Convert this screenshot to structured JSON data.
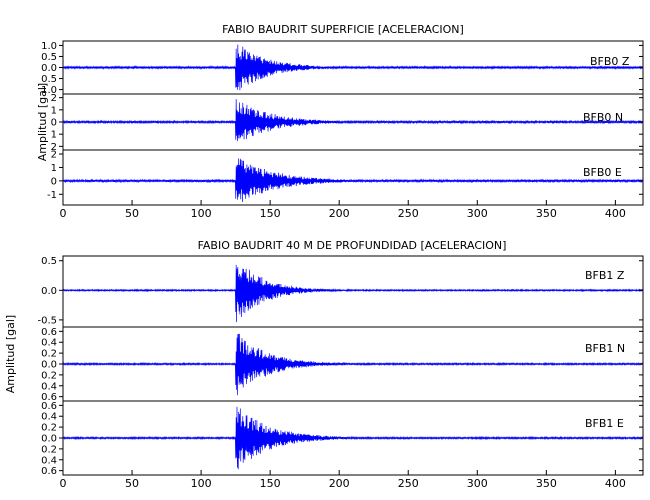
{
  "chart_data": [
    {
      "type": "line",
      "title": "FABIO BAUDRIT SUPERFICIE [ACELERACION]",
      "ylabel": "Amplitud [gal]",
      "xlabel": "",
      "xlim": [
        0,
        420
      ],
      "xticks": [
        "0",
        "50",
        "100",
        "150",
        "200",
        "250",
        "300",
        "350",
        "400"
      ],
      "xtick_values": [
        0,
        50,
        100,
        150,
        200,
        250,
        300,
        350,
        400
      ],
      "grid": false,
      "trace_color": "#0000ff",
      "series": [
        {
          "name": "BFB0 Z",
          "station": "BFB0",
          "component": "Z",
          "ylim": [
            -1.2,
            1.2
          ],
          "ytick_labels": [
            "1.0",
            "0.5",
            "0.0",
            "0.5",
            "1.0"
          ],
          "ytick_values": [
            1.0,
            0.5,
            0.0,
            -0.5,
            -1.0
          ],
          "onset_s": 125,
          "peak_amplitude": 1.15,
          "noise_level": 0.05,
          "decay_s": 22
        },
        {
          "name": "BFB0 N",
          "station": "BFB0",
          "component": "N",
          "ylim": [
            -2.3,
            2.3
          ],
          "ytick_labels": [
            "2",
            "1",
            "0",
            "1",
            "2"
          ],
          "ytick_values": [
            2,
            1,
            0,
            -1,
            -2
          ],
          "onset_s": 125,
          "peak_amplitude": 1.9,
          "noise_level": 0.08,
          "decay_s": 25
        },
        {
          "name": "BFB0 E",
          "station": "BFB0",
          "component": "E",
          "ylim": [
            -1.8,
            2.3
          ],
          "ytick_labels": [
            "2",
            "1",
            "0",
            "-1"
          ],
          "ytick_values": [
            2,
            1,
            0,
            -1
          ],
          "onset_s": 125,
          "peak_amplitude": 1.8,
          "noise_level": 0.08,
          "decay_s": 28
        }
      ]
    },
    {
      "type": "line",
      "title": "FABIO BAUDRIT 40 M DE PROFUNDIDAD [ACELERACION]",
      "ylabel": "Amplitud [gal]",
      "xlabel": "",
      "xlim": [
        0,
        420
      ],
      "xticks": [
        "0",
        "50",
        "100",
        "150",
        "200",
        "250",
        "300",
        "350",
        "400"
      ],
      "xtick_values": [
        0,
        50,
        100,
        150,
        200,
        250,
        300,
        350,
        400
      ],
      "grid": false,
      "trace_color": "#0000ff",
      "series": [
        {
          "name": "BFB1 Z",
          "station": "BFB1",
          "component": "Z",
          "ylim": [
            -0.62,
            0.58
          ],
          "ytick_labels": [
            "0.5",
            "0.0",
            "-0.5"
          ],
          "ytick_values": [
            0.5,
            0.0,
            -0.5
          ],
          "onset_s": 125,
          "peak_amplitude": 0.55,
          "noise_level": 0.012,
          "decay_s": 20
        },
        {
          "name": "BFB1 N",
          "station": "BFB1",
          "component": "N",
          "ylim": [
            -0.68,
            0.68
          ],
          "ytick_labels": [
            "0.6",
            "0.4",
            "0.2",
            "0.0",
            "0.2",
            "0.4",
            "0.6"
          ],
          "ytick_values": [
            0.6,
            0.4,
            0.2,
            0.0,
            -0.2,
            -0.4,
            -0.6
          ],
          "onset_s": 125,
          "peak_amplitude": 0.6,
          "noise_level": 0.015,
          "decay_s": 22
        },
        {
          "name": "BFB1 E",
          "station": "BFB1",
          "component": "E",
          "ylim": [
            -0.68,
            0.68
          ],
          "ytick_labels": [
            "0.6",
            "0.4",
            "0.2",
            "0.0",
            "0.2",
            "0.4",
            "0.6"
          ],
          "ytick_values": [
            0.6,
            0.4,
            0.2,
            0.0,
            -0.2,
            -0.4,
            -0.6
          ],
          "onset_s": 125,
          "peak_amplitude": 0.6,
          "noise_level": 0.015,
          "decay_s": 24
        }
      ]
    }
  ]
}
